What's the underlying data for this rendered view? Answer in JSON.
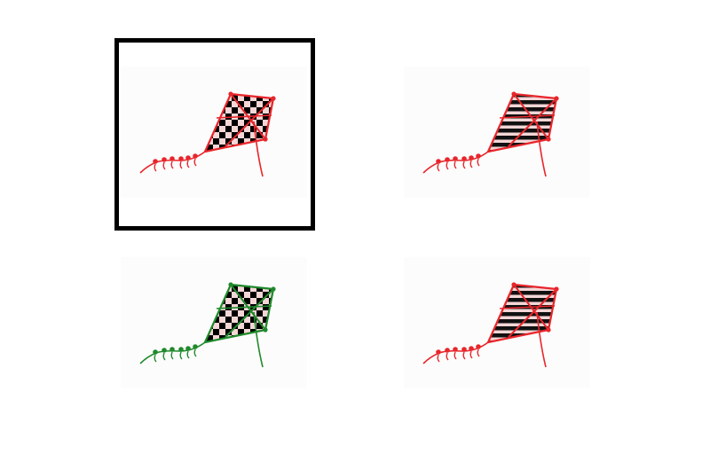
{
  "puzzle": {
    "selected_index": 0,
    "options": [
      {
        "icon": "kite-checkered-icon",
        "pattern": "checker",
        "color": "#e8262b",
        "selected": true
      },
      {
        "icon": "kite-striped-icon",
        "pattern": "stripes",
        "color": "#e8262b",
        "selected": false
      },
      {
        "icon": "kite-checkered-icon",
        "pattern": "checker",
        "color": "#1f8a2c",
        "selected": false
      },
      {
        "icon": "kite-striped-icon",
        "pattern": "stripes",
        "color": "#e8262b",
        "selected": false
      }
    ]
  }
}
